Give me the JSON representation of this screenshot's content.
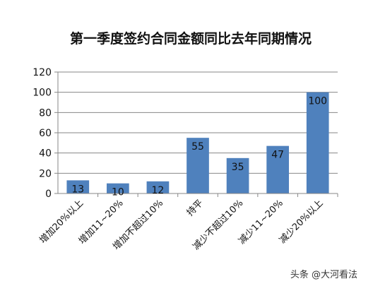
{
  "chart_data": {
    "type": "bar",
    "title": "第一季度签约合同金额同比去年同期情况",
    "categories": [
      "增加20%以上",
      "增加11~20%",
      "增加不超过10%",
      "持平",
      "减少不超过10%",
      "减少11~20%",
      "减少20%以上"
    ],
    "values": [
      13,
      10,
      12,
      55,
      35,
      47,
      100
    ],
    "data_labels": [
      "13",
      "10",
      "12",
      "55",
      "35",
      "47",
      "100"
    ],
    "y_ticks": [
      "0",
      "20",
      "40",
      "60",
      "80",
      "100",
      "120"
    ],
    "ylim": [
      0,
      120
    ],
    "grid": true,
    "legend": "none",
    "bar_color": "#4F81BD",
    "xlabel": "",
    "ylabel": ""
  },
  "watermark": "头条 @大河看法"
}
